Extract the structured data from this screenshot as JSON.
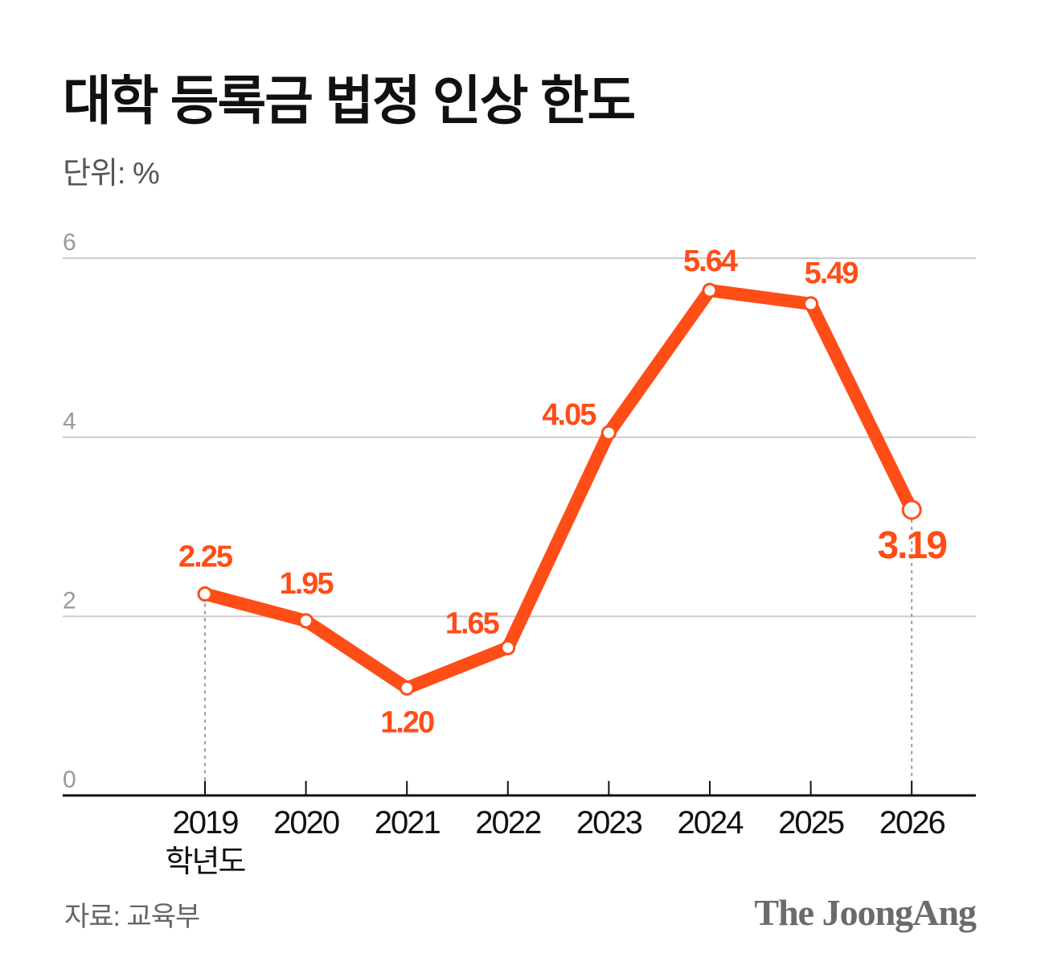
{
  "title": "대학 등록금 법정 인상 한도",
  "unit": "단위: %",
  "source": "자료: 교육부",
  "logo": "The JoongAng",
  "colors": {
    "line": "#ff4d17",
    "grid": "#cccccc",
    "axis": "#111111",
    "tick_label": "#999999"
  },
  "chart_data": {
    "type": "line",
    "title": "대학 등록금 법정 인상 한도",
    "ylabel": "단위: %",
    "xlabel_suffix": "학년도",
    "categories": [
      "2019",
      "2020",
      "2021",
      "2022",
      "2023",
      "2024",
      "2025",
      "2026"
    ],
    "values": [
      2.25,
      1.95,
      1.2,
      1.65,
      4.05,
      5.64,
      5.49,
      3.19
    ],
    "data_labels": [
      "2.25",
      "1.95",
      "1.20",
      "1.65",
      "4.05",
      "5.64",
      "5.49",
      "3.19"
    ],
    "ylim": [
      0,
      6
    ],
    "yticks": [
      "0",
      "2",
      "4",
      "6"
    ],
    "grid": true,
    "legend": "none"
  }
}
